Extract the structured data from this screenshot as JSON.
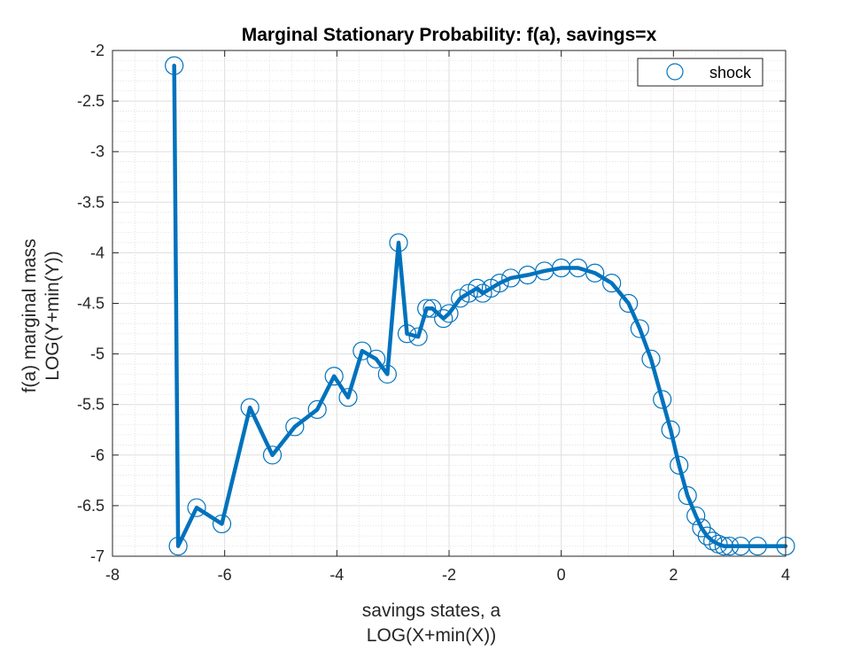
{
  "chart_data": {
    "type": "line",
    "title": "Marginal Stationary Probability: f(a), savings=x",
    "xlabel": [
      "savings states, a",
      "LOG(X+min(X))"
    ],
    "ylabel": [
      "f(a) marginal mass",
      "LOG(Y+min(Y))"
    ],
    "xlim": [
      -8,
      4
    ],
    "ylim": [
      -7,
      -2
    ],
    "xticks": [
      -8,
      -6,
      -4,
      -2,
      0,
      2,
      4
    ],
    "yticks": [
      -2,
      -2.5,
      -3,
      -3.5,
      -4,
      -4.5,
      -5,
      -5.5,
      -6,
      -6.5,
      -7
    ],
    "grid": true,
    "minor_grid": true,
    "legend_placement": "top-right",
    "series": [
      {
        "name": "shock",
        "color": "#0072BD",
        "marker": "circle",
        "x": [
          -6.9,
          -6.83,
          -6.5,
          -6.05,
          -5.55,
          -5.15,
          -4.75,
          -4.35,
          -4.05,
          -3.8,
          -3.55,
          -3.3,
          -3.1,
          -2.9,
          -2.75,
          -2.55,
          -2.4,
          -2.3,
          -2.1,
          -2.0,
          -1.8,
          -1.65,
          -1.5,
          -1.4,
          -1.25,
          -1.1,
          -0.9,
          -0.6,
          -0.3,
          0.0,
          0.3,
          0.6,
          0.9,
          1.2,
          1.4,
          1.6,
          1.8,
          1.95,
          2.1,
          2.25,
          2.4,
          2.5,
          2.6,
          2.7,
          2.8,
          2.9,
          3.0,
          3.2,
          3.5,
          4.0
        ],
        "y": [
          -2.15,
          -6.9,
          -6.52,
          -6.68,
          -5.53,
          -6.0,
          -5.72,
          -5.55,
          -5.22,
          -5.43,
          -4.97,
          -5.05,
          -5.2,
          -3.9,
          -4.8,
          -4.83,
          -4.55,
          -4.55,
          -4.65,
          -4.6,
          -4.45,
          -4.4,
          -4.35,
          -4.4,
          -4.35,
          -4.3,
          -4.25,
          -4.22,
          -4.18,
          -4.15,
          -4.15,
          -4.2,
          -4.3,
          -4.5,
          -4.75,
          -5.05,
          -5.45,
          -5.75,
          -6.1,
          -6.4,
          -6.6,
          -6.72,
          -6.8,
          -6.85,
          -6.88,
          -6.9,
          -6.9,
          -6.9,
          -6.9,
          -6.9
        ]
      }
    ]
  }
}
